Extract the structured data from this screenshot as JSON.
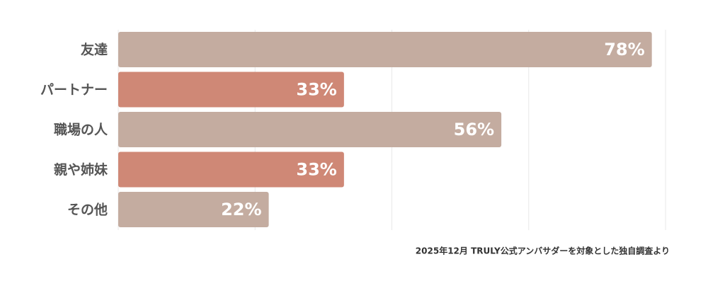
{
  "chart_data": {
    "type": "barh",
    "categories": [
      "友達",
      "パートナー",
      "職場の人",
      "親や姉妹",
      "その他"
    ],
    "values": [
      78,
      33,
      56,
      33,
      22
    ],
    "value_labels": [
      "78%",
      "33%",
      "56%",
      "33%",
      "22%"
    ],
    "colors": [
      "#c4aca0",
      "#cf8876",
      "#c4aca0",
      "#cf8876",
      "#c4aca0"
    ],
    "xlim": [
      0,
      80
    ],
    "xticks": [
      0,
      20,
      40,
      60,
      80
    ],
    "grid": true,
    "note": "2025年12月 TRULY公式アンバサダーを対象とした独自調査より"
  }
}
